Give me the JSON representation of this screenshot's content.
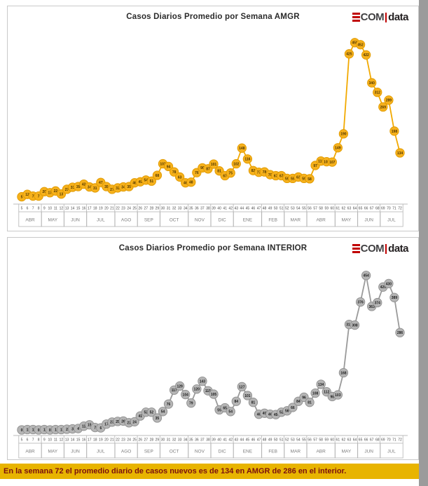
{
  "page": {
    "caption": "En la semana 72 el promedio diario de casos nuevos  es de 134  en AMGR de 286 en el interior."
  },
  "logo": {
    "com": "COM",
    "data": "data",
    "red": "#c00000",
    "dark": "#414042"
  },
  "chart_data": [
    {
      "type": "line",
      "title": "Casos Diarios  Promedio por Semana AMGR",
      "series_name": "AMGR",
      "week_start": 5,
      "week_end": 72,
      "values": [
        5,
        12,
        7,
        7,
        20,
        17,
        22,
        13,
        27,
        33,
        35,
        42,
        34,
        31,
        47,
        35,
        27,
        31,
        34,
        35,
        46,
        49,
        54,
        51,
        68,
        102,
        94,
        78,
        63,
        46,
        48,
        76,
        90,
        87,
        101,
        81,
        67,
        75,
        102,
        148,
        116,
        82,
        77,
        78,
        70,
        67,
        67,
        59,
        59,
        63,
        59,
        58,
        97,
        110,
        108,
        107,
        149,
        190,
        425,
        458,
        452,
        422,
        340,
        312,
        269,
        289,
        198,
        134
      ],
      "x_months": [
        {
          "label": "ABR",
          "weeks": [
            5,
            8
          ]
        },
        {
          "label": "MAY",
          "weeks": [
            9,
            12
          ]
        },
        {
          "label": "JUN",
          "weeks": [
            13,
            16
          ]
        },
        {
          "label": "JUL",
          "weeks": [
            17,
            21
          ]
        },
        {
          "label": "AGO",
          "weeks": [
            22,
            25
          ]
        },
        {
          "label": "SEP",
          "weeks": [
            26,
            29
          ]
        },
        {
          "label": "OCT",
          "weeks": [
            30,
            34
          ]
        },
        {
          "label": "NOV",
          "weeks": [
            35,
            38
          ]
        },
        {
          "label": "DIC",
          "weeks": [
            39,
            42
          ]
        },
        {
          "label": "ENE",
          "weeks": [
            43,
            47
          ]
        },
        {
          "label": "FEB",
          "weeks": [
            48,
            51
          ]
        },
        {
          "label": "MAR",
          "weeks": [
            52,
            55
          ]
        },
        {
          "label": "ABR",
          "weeks": [
            56,
            60
          ]
        },
        {
          "label": "MAY",
          "weeks": [
            61,
            64
          ]
        },
        {
          "label": "JUN",
          "weeks": [
            65,
            68
          ]
        },
        {
          "label": "JUL",
          "weeks": [
            69,
            72
          ]
        }
      ],
      "ylim": [
        0,
        470
      ],
      "grid": "off",
      "legend": "none",
      "line_color": "#f2a900",
      "dot_fill": "#f6b11c",
      "dot_stroke": "#e09a00",
      "label_color": "#4d3500"
    },
    {
      "type": "line",
      "title": "Casos Diarios  Promedio por Semana INTERIOR",
      "series_name": "INTERIOR",
      "week_start": 5,
      "week_end": 72,
      "values": [
        0,
        1,
        1,
        0,
        1,
        0,
        1,
        1,
        2,
        3,
        4,
        11,
        15,
        7,
        6,
        17,
        23,
        25,
        26,
        21,
        24,
        41,
        52,
        52,
        35,
        54,
        76,
        117,
        129,
        104,
        79,
        120,
        143,
        115,
        105,
        59,
        65,
        54,
        84,
        127,
        101,
        81,
        46,
        49,
        46,
        45,
        52,
        56,
        66,
        84,
        96,
        81,
        108,
        134,
        112,
        98,
        103,
        168,
        310,
        308,
        376,
        454,
        363,
        374,
        420,
        430,
        389,
        286
      ],
      "x_months": [
        {
          "label": "ABR",
          "weeks": [
            5,
            8
          ]
        },
        {
          "label": "MAY",
          "weeks": [
            9,
            12
          ]
        },
        {
          "label": "JUN",
          "weeks": [
            13,
            16
          ]
        },
        {
          "label": "JUL",
          "weeks": [
            17,
            21
          ]
        },
        {
          "label": "AGO",
          "weeks": [
            22,
            25
          ]
        },
        {
          "label": "SEP",
          "weeks": [
            26,
            29
          ]
        },
        {
          "label": "OCT",
          "weeks": [
            30,
            34
          ]
        },
        {
          "label": "NOV",
          "weeks": [
            35,
            38
          ]
        },
        {
          "label": "DIC",
          "weeks": [
            39,
            42
          ]
        },
        {
          "label": "ENE",
          "weeks": [
            43,
            47
          ]
        },
        {
          "label": "FEB",
          "weeks": [
            48,
            51
          ]
        },
        {
          "label": "MAR",
          "weeks": [
            52,
            55
          ]
        },
        {
          "label": "ABR",
          "weeks": [
            56,
            60
          ]
        },
        {
          "label": "MAY",
          "weeks": [
            61,
            64
          ]
        },
        {
          "label": "JUN",
          "weeks": [
            65,
            68
          ]
        },
        {
          "label": "JUL",
          "weeks": [
            69,
            72
          ]
        }
      ],
      "ylim": [
        0,
        470
      ],
      "grid": "off",
      "legend": "none",
      "line_color": "#9a9a9a",
      "dot_fill": "#b5b5b5",
      "dot_stroke": "#8f8f8f",
      "label_color": "#1a1a1a"
    }
  ]
}
